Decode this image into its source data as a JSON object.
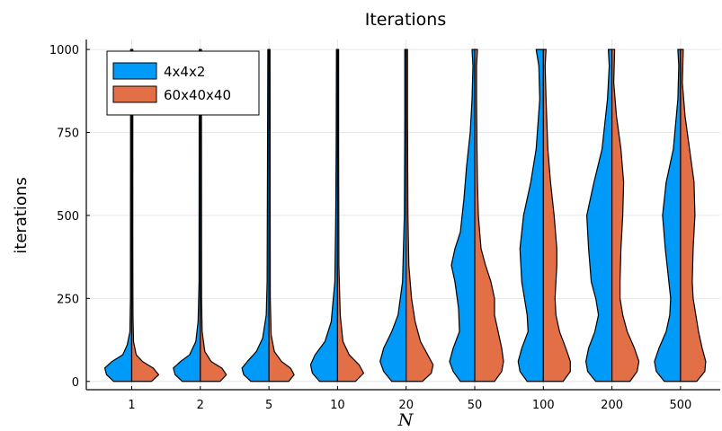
{
  "chart_data": {
    "type": "violin",
    "title": "Iterations",
    "xlabel": "N",
    "ylabel": "iterations",
    "categories": [
      "1",
      "2",
      "5",
      "10",
      "20",
      "50",
      "100",
      "200",
      "500"
    ],
    "ylim": [
      -25,
      1030
    ],
    "yticks": [
      0,
      250,
      500,
      750,
      1000
    ],
    "ytick_labels": [
      "0",
      "250",
      "500",
      "750",
      "1000"
    ],
    "grid": true,
    "legend_position": "top-left",
    "series": [
      {
        "name": "4x4x2",
        "side": "left",
        "color": "#009af9",
        "max_iterations": [
          1000,
          1000,
          1000,
          1000,
          1000,
          1000,
          1000,
          1000,
          1000
        ],
        "density_profiles": [
          [
            [
              0,
              20
            ],
            [
              20,
              28
            ],
            [
              40,
              30
            ],
            [
              60,
              22
            ],
            [
              80,
              10
            ],
            [
              110,
              5
            ],
            [
              150,
              2
            ],
            [
              250,
              1.4
            ],
            [
              1000,
              1.2
            ]
          ],
          [
            [
              0,
              20
            ],
            [
              20,
              28
            ],
            [
              40,
              30
            ],
            [
              60,
              22
            ],
            [
              80,
              12
            ],
            [
              120,
              5
            ],
            [
              180,
              2.5
            ],
            [
              300,
              1.4
            ],
            [
              1000,
              1.2
            ]
          ],
          [
            [
              0,
              20
            ],
            [
              20,
              28
            ],
            [
              40,
              30
            ],
            [
              60,
              24
            ],
            [
              90,
              14
            ],
            [
              130,
              7
            ],
            [
              200,
              3
            ],
            [
              300,
              2
            ],
            [
              1000,
              1.2
            ]
          ],
          [
            [
              0,
              20
            ],
            [
              25,
              28
            ],
            [
              50,
              30
            ],
            [
              80,
              25
            ],
            [
              120,
              14
            ],
            [
              180,
              7
            ],
            [
              300,
              3
            ],
            [
              500,
              2
            ],
            [
              700,
              1.5
            ],
            [
              1000,
              1.2
            ]
          ],
          [
            [
              0,
              16
            ],
            [
              30,
              25
            ],
            [
              60,
              29
            ],
            [
              100,
              25
            ],
            [
              150,
              16
            ],
            [
              200,
              9
            ],
            [
              300,
              4
            ],
            [
              500,
              2
            ],
            [
              800,
              1.5
            ],
            [
              1000,
              1.5
            ]
          ],
          [
            [
              0,
              16
            ],
            [
              30,
              24
            ],
            [
              60,
              28
            ],
            [
              100,
              24
            ],
            [
              150,
              17
            ],
            [
              220,
              18
            ],
            [
              300,
              22
            ],
            [
              350,
              26
            ],
            [
              400,
              22
            ],
            [
              450,
              16
            ],
            [
              550,
              12
            ],
            [
              650,
              9
            ],
            [
              750,
              5
            ],
            [
              850,
              3
            ],
            [
              950,
              2
            ],
            [
              1000,
              3
            ]
          ],
          [
            [
              0,
              18
            ],
            [
              30,
              26
            ],
            [
              60,
              28
            ],
            [
              100,
              24
            ],
            [
              150,
              17
            ],
            [
              200,
              18
            ],
            [
              250,
              21
            ],
            [
              300,
              24
            ],
            [
              400,
              26
            ],
            [
              500,
              22
            ],
            [
              600,
              14
            ],
            [
              700,
              8
            ],
            [
              850,
              4
            ],
            [
              950,
              5
            ],
            [
              1000,
              8
            ]
          ],
          [
            [
              0,
              18
            ],
            [
              30,
              27
            ],
            [
              60,
              29
            ],
            [
              100,
              26
            ],
            [
              150,
              19
            ],
            [
              200,
              15
            ],
            [
              250,
              18
            ],
            [
              300,
              23
            ],
            [
              400,
              26
            ],
            [
              500,
              28
            ],
            [
              600,
              20
            ],
            [
              700,
              11
            ],
            [
              850,
              5
            ],
            [
              950,
              3
            ],
            [
              1000,
              4
            ]
          ],
          [
            [
              0,
              18
            ],
            [
              30,
              27
            ],
            [
              60,
              29
            ],
            [
              100,
              24
            ],
            [
              150,
              16
            ],
            [
              200,
              12
            ],
            [
              250,
              11
            ],
            [
              300,
              13
            ],
            [
              400,
              17
            ],
            [
              500,
              20
            ],
            [
              600,
              16
            ],
            [
              700,
              8
            ],
            [
              850,
              3
            ],
            [
              950,
              2
            ],
            [
              1000,
              3
            ]
          ]
        ]
      },
      {
        "name": "60x40x40",
        "side": "right",
        "color": "#e26f46",
        "max_iterations": [
          1000,
          1000,
          1000,
          1000,
          1000,
          1000,
          1000,
          1000,
          1000
        ],
        "density_profiles": [
          [
            [
              0,
              22
            ],
            [
              20,
              30
            ],
            [
              40,
              24
            ],
            [
              60,
              12
            ],
            [
              80,
              5
            ],
            [
              120,
              2
            ],
            [
              200,
              1.4
            ],
            [
              400,
              1.2
            ],
            [
              1000,
              1.2
            ]
          ],
          [
            [
              0,
              22
            ],
            [
              20,
              29
            ],
            [
              40,
              24
            ],
            [
              60,
              12
            ],
            [
              90,
              5
            ],
            [
              150,
              2
            ],
            [
              250,
              1.4
            ],
            [
              1000,
              1.2
            ]
          ],
          [
            [
              0,
              22
            ],
            [
              20,
              28
            ],
            [
              40,
              24
            ],
            [
              60,
              14
            ],
            [
              90,
              6
            ],
            [
              140,
              2.5
            ],
            [
              250,
              1.5
            ],
            [
              1000,
              1.2
            ]
          ],
          [
            [
              0,
              20
            ],
            [
              25,
              29
            ],
            [
              50,
              24
            ],
            [
              80,
              13
            ],
            [
              120,
              6
            ],
            [
              200,
              3
            ],
            [
              350,
              1.5
            ],
            [
              700,
              1.2
            ],
            [
              1000,
              1.2
            ]
          ],
          [
            [
              0,
              18
            ],
            [
              25,
              28
            ],
            [
              50,
              30
            ],
            [
              80,
              24
            ],
            [
              120,
              16
            ],
            [
              180,
              10
            ],
            [
              250,
              6
            ],
            [
              350,
              3
            ],
            [
              500,
              2
            ],
            [
              800,
              1.5
            ],
            [
              1000,
              1.5
            ]
          ],
          [
            [
              0,
              22
            ],
            [
              30,
              30
            ],
            [
              60,
              32
            ],
            [
              100,
              30
            ],
            [
              150,
              26
            ],
            [
              200,
              22
            ],
            [
              250,
              22
            ],
            [
              300,
              18
            ],
            [
              350,
              12
            ],
            [
              400,
              7
            ],
            [
              500,
              4
            ],
            [
              600,
              3
            ],
            [
              700,
              2.5
            ],
            [
              850,
              2
            ],
            [
              950,
              2
            ],
            [
              1000,
              3
            ]
          ],
          [
            [
              0,
              22
            ],
            [
              30,
              30
            ],
            [
              60,
              30
            ],
            [
              100,
              25
            ],
            [
              150,
              18
            ],
            [
              200,
              14
            ],
            [
              250,
              13
            ],
            [
              300,
              14
            ],
            [
              350,
              15
            ],
            [
              400,
              15
            ],
            [
              500,
              12
            ],
            [
              600,
              8
            ],
            [
              700,
              5
            ],
            [
              850,
              3
            ],
            [
              950,
              2
            ],
            [
              1000,
              3
            ]
          ],
          [
            [
              0,
              20
            ],
            [
              30,
              28
            ],
            [
              60,
              30
            ],
            [
              100,
              25
            ],
            [
              150,
              17
            ],
            [
              200,
              12
            ],
            [
              250,
              9
            ],
            [
              300,
              9
            ],
            [
              400,
              10
            ],
            [
              500,
              12
            ],
            [
              600,
              13
            ],
            [
              700,
              10
            ],
            [
              800,
              5
            ],
            [
              900,
              2
            ],
            [
              1000,
              3
            ]
          ],
          [
            [
              0,
              18
            ],
            [
              30,
              27
            ],
            [
              60,
              28
            ],
            [
              100,
              24
            ],
            [
              150,
              20
            ],
            [
              200,
              17
            ],
            [
              250,
              14
            ],
            [
              300,
              13
            ],
            [
              400,
              14
            ],
            [
              500,
              16
            ],
            [
              600,
              15
            ],
            [
              700,
              10
            ],
            [
              800,
              5
            ],
            [
              900,
              2
            ],
            [
              1000,
              3
            ]
          ]
        ]
      }
    ]
  }
}
